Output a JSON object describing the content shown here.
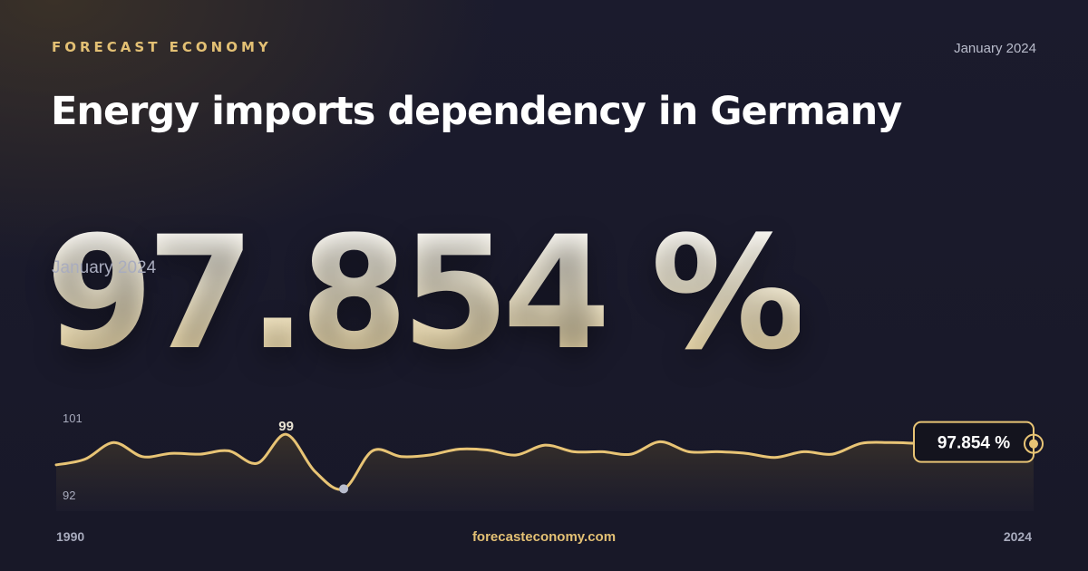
{
  "header": {
    "brand": "FORECAST ECONOMY",
    "date": "January 2024",
    "title": "Energy imports dependency in Germany"
  },
  "headline": {
    "value": "97.854 %",
    "date": "January 2024"
  },
  "footer": {
    "site": "forecasteconomy.com",
    "start_year": "1990",
    "end_year": "2024"
  },
  "chart_data": {
    "type": "area",
    "x": [
      1990,
      1991,
      1992,
      1993,
      1994,
      1995,
      1996,
      1997,
      1998,
      1999,
      2000,
      2001,
      2002,
      2003,
      2004,
      2005,
      2006,
      2007,
      2008,
      2009,
      2010,
      2011,
      2012,
      2013,
      2014,
      2015,
      2016,
      2017,
      2018,
      2019,
      2020,
      2021,
      2022,
      2023,
      2024
    ],
    "values": [
      95.3,
      96.0,
      98.0,
      96.3,
      96.7,
      96.6,
      97.0,
      95.5,
      99.0,
      94.5,
      92.4,
      97.0,
      96.3,
      96.5,
      97.2,
      97.1,
      96.5,
      97.7,
      96.9,
      96.9,
      96.6,
      98.1,
      96.9,
      96.9,
      96.7,
      96.2,
      96.9,
      96.6,
      97.9,
      98.0,
      97.9,
      97.8,
      97.9,
      97.9,
      97.854
    ],
    "yticks": [
      101,
      92
    ],
    "ylim": [
      92,
      101
    ],
    "annotations": {
      "max_label": "99",
      "last_label": "97.854 %"
    },
    "colors": {
      "line": "#e8c475",
      "min_point": "#b8bccd",
      "callout_border": "#e8c475"
    }
  }
}
